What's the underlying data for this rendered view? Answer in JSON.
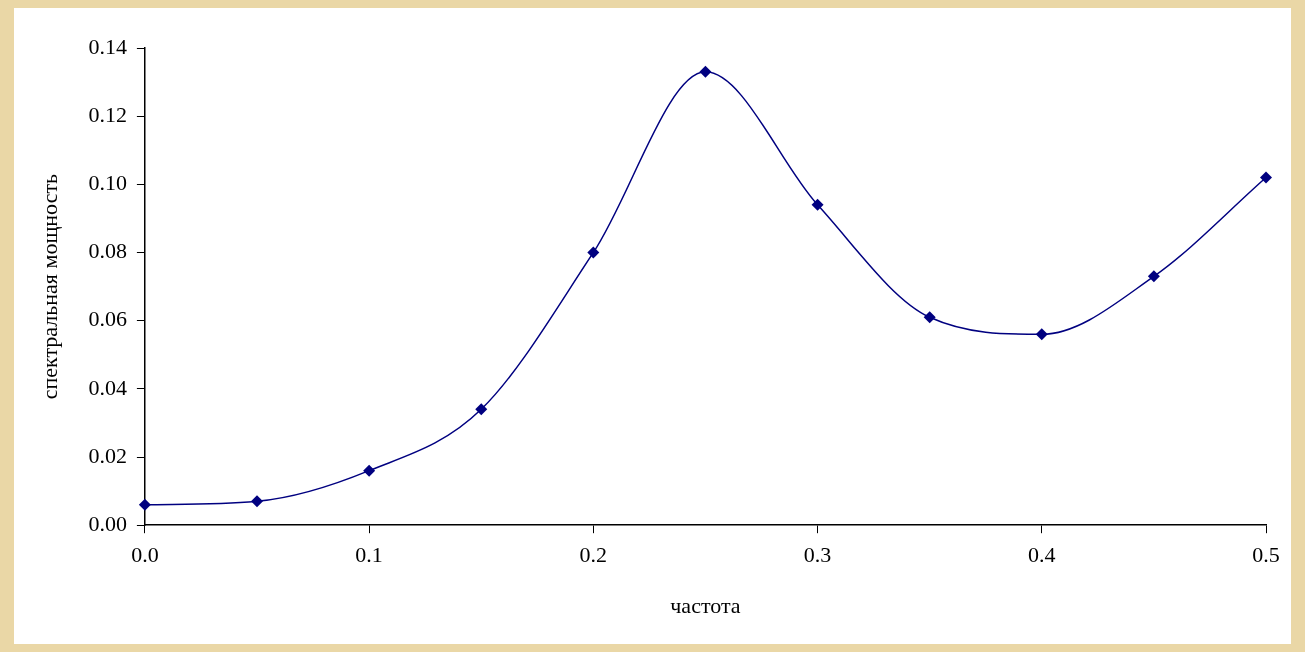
{
  "chart_data": {
    "type": "line",
    "xlabel": "частота",
    "ylabel": "спектральная мощность",
    "x": [
      0,
      0.05,
      0.1,
      0.15,
      0.2,
      0.25,
      0.3,
      0.35,
      0.4,
      0.45,
      0.5
    ],
    "series": [
      {
        "color": "#000080",
        "values": [
          0.006,
          0.007,
          0.016,
          0.034,
          0.08,
          0.133,
          0.094,
          0.061,
          0.056,
          0.073,
          0.102
        ]
      }
    ],
    "xlim": [
      0,
      0.5
    ],
    "xticks": [
      {
        "value": 0,
        "label": "0.0"
      },
      0.1,
      0.2,
      0.3,
      0.4,
      0.5
    ],
    "ylim": [
      0,
      0.14
    ],
    "yticks": [
      {
        "value": 0,
        "label": "0.00"
      },
      0.02,
      0.04,
      0.06,
      0.08,
      {
        "value": 0.1,
        "label": "0.10"
      },
      0.12,
      0.14
    ],
    "grid": false,
    "legend": false,
    "marker": "diamond",
    "line_style": "solid"
  }
}
